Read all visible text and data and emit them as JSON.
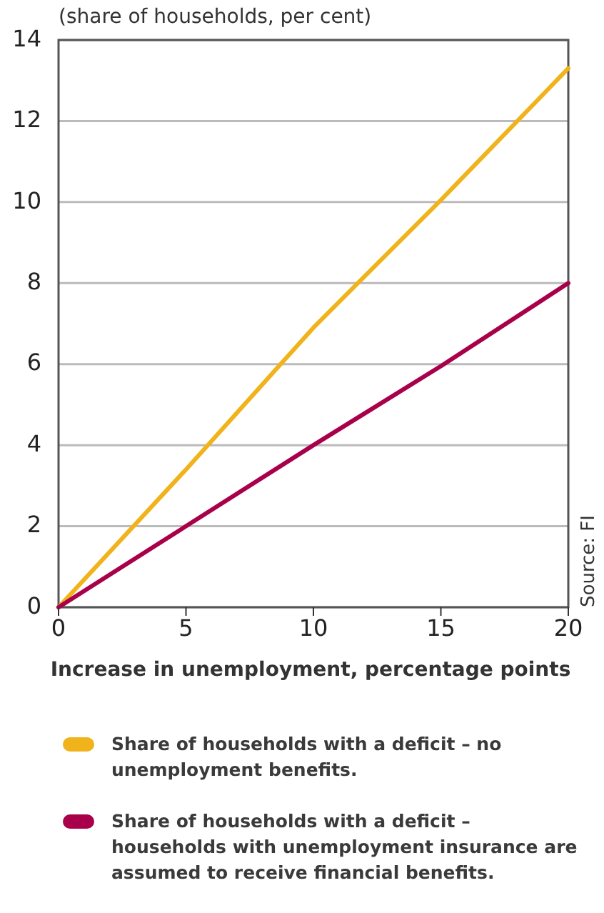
{
  "chart_data": {
    "type": "line",
    "ylabel": "(share of households, per cent)",
    "xlabel": "Increase in unemployment, percentage points",
    "x": [
      0,
      5,
      10,
      15,
      20
    ],
    "series": [
      {
        "name": "Share of households with a deficit – no unemployment benefits.",
        "color": "#f0b31b",
        "values": [
          0,
          3.4,
          6.9,
          10.05,
          13.3
        ]
      },
      {
        "name": "Share of households with a deficit – households with unemployment insurance are assumed to receive financial benefits.",
        "color": "#a8004a",
        "values": [
          0,
          2,
          4,
          5.95,
          8
        ]
      }
    ],
    "xlim": [
      0,
      20
    ],
    "xticks": [
      0,
      5,
      10,
      15,
      20
    ],
    "ylim": [
      0,
      14
    ],
    "yticks": [
      0,
      2,
      4,
      6,
      8,
      10,
      12,
      14
    ],
    "grid": "y",
    "legend": "bottom",
    "marker": "none",
    "line_style": "solid",
    "annotations": [
      "Source: FI"
    ]
  }
}
